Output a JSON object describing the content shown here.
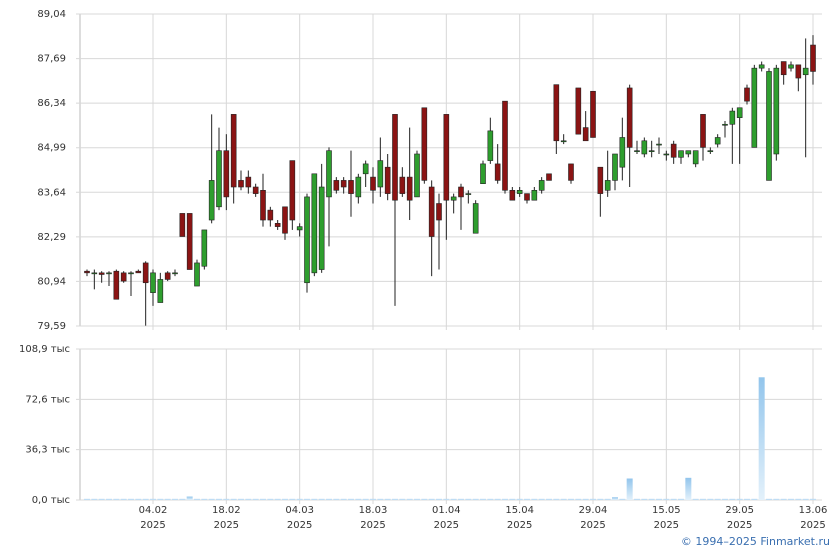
{
  "chart_data": {
    "type": "candlestick",
    "categories": [
      null,
      null,
      null,
      null,
      null,
      null,
      null,
      null,
      null,
      "04.02\n2025",
      null,
      null,
      null,
      null,
      null,
      null,
      null,
      null,
      null,
      "18.02\n2025",
      null,
      null,
      null,
      null,
      null,
      null,
      null,
      null,
      null,
      "04.03\n2025",
      null,
      null,
      null,
      null,
      null,
      null,
      null,
      null,
      null,
      "18.03\n2025",
      null,
      null,
      null,
      null,
      null,
      null,
      null,
      null,
      null,
      "01.04\n2025",
      null,
      null,
      null,
      null,
      null,
      null,
      null,
      null,
      null,
      "15.04\n2025",
      null,
      null,
      null,
      null,
      null,
      null,
      null,
      null,
      null,
      "29.04\n2025",
      null,
      null,
      null,
      null,
      null,
      null,
      null,
      null,
      null,
      "15.05\n2025",
      null,
      null,
      null,
      null,
      null,
      null,
      null,
      null,
      null,
      "29.05\n2025",
      null,
      null,
      null,
      null,
      null,
      null,
      null,
      null,
      null,
      "13.06\n2025"
    ],
    "open": [
      81.25,
      81.2,
      81.2,
      81.2,
      81.25,
      81.2,
      81.2,
      81.25,
      81.5,
      80.6,
      80.3,
      81.2,
      81.2,
      83.0,
      83.0,
      80.8,
      81.4,
      82.8,
      83.2,
      84.9,
      86.0,
      84.0,
      84.1,
      83.8,
      83.7,
      83.1,
      82.7,
      83.2,
      84.6,
      82.5,
      80.9,
      81.2,
      81.3,
      83.5,
      84.0,
      84.0,
      84.0,
      83.5,
      84.2,
      84.1,
      83.8,
      84.4,
      86.0,
      84.1,
      84.1,
      83.5,
      86.2,
      83.8,
      83.3,
      86.0,
      83.4,
      83.8,
      83.6,
      82.4,
      83.9,
      84.6,
      84.5,
      86.4,
      83.7,
      83.6,
      83.6,
      83.4,
      83.7,
      84.2,
      86.9,
      85.2,
      84.5,
      86.8,
      85.6,
      86.7,
      84.4,
      83.7,
      84.0,
      84.4,
      86.8,
      84.9,
      84.8,
      84.9,
      85.1,
      84.8,
      85.1,
      84.7,
      84.8,
      84.5,
      86.0,
      84.9,
      85.1,
      85.7,
      85.7,
      85.9,
      86.8,
      85.0,
      87.4,
      84.0,
      84.8,
      87.6,
      87.4,
      87.5,
      87.2,
      88.1
    ],
    "high": [
      81.3,
      81.3,
      81.25,
      81.25,
      81.3,
      81.25,
      81.25,
      81.3,
      81.55,
      81.3,
      81.2,
      81.25,
      81.3,
      83.0,
      83.0,
      81.6,
      82.5,
      86.0,
      85.6,
      85.4,
      86.0,
      84.3,
      84.3,
      83.9,
      84.2,
      83.2,
      82.8,
      83.2,
      84.6,
      82.7,
      83.6,
      84.2,
      84.5,
      85.0,
      84.1,
      84.1,
      84.9,
      84.2,
      84.6,
      84.4,
      85.3,
      84.8,
      86.0,
      84.4,
      85.6,
      84.9,
      86.2,
      84.0,
      83.6,
      86.0,
      83.6,
      83.9,
      83.7,
      83.4,
      84.6,
      85.9,
      85.1,
      86.4,
      83.8,
      83.8,
      83.6,
      83.8,
      84.1,
      84.2,
      86.9,
      85.4,
      84.5,
      86.8,
      86.1,
      86.7,
      84.4,
      84.9,
      84.8,
      85.9,
      86.9,
      85.2,
      85.3,
      85.2,
      85.3,
      84.9,
      85.2,
      84.9,
      84.9,
      84.9,
      86.0,
      85.0,
      85.4,
      85.8,
      86.2,
      86.2,
      86.9,
      87.5,
      87.6,
      87.4,
      87.5,
      87.6,
      87.6,
      87.5,
      88.3,
      88.4
    ],
    "low": [
      81.1,
      80.7,
      80.9,
      80.8,
      80.4,
      80.9,
      80.5,
      81.2,
      79.6,
      80.2,
      80.3,
      80.95,
      81.1,
      82.3,
      81.3,
      80.8,
      81.3,
      82.7,
      83.1,
      83.1,
      83.3,
      83.7,
      83.6,
      83.5,
      82.6,
      82.6,
      82.5,
      82.2,
      82.5,
      82.3,
      80.6,
      81.1,
      81.2,
      82.0,
      83.6,
      83.6,
      82.9,
      83.3,
      83.8,
      83.3,
      83.5,
      83.4,
      80.2,
      83.5,
      82.8,
      83.5,
      83.9,
      81.1,
      81.3,
      82.2,
      83.0,
      82.5,
      83.3,
      82.4,
      83.9,
      84.5,
      83.9,
      83.6,
      83.4,
      83.5,
      83.3,
      83.4,
      83.6,
      84.0,
      84.8,
      85.1,
      83.9,
      85.4,
      85.2,
      85.3,
      82.9,
      83.5,
      83.7,
      84.0,
      83.8,
      84.8,
      84.7,
      84.7,
      84.8,
      84.6,
      84.5,
      84.5,
      84.7,
      84.4,
      84.6,
      84.8,
      85.0,
      85.3,
      84.5,
      84.5,
      86.3,
      85.0,
      87.3,
      84.0,
      84.6,
      86.9,
      87.3,
      86.7,
      84.7,
      86.9
    ],
    "close": [
      81.2,
      81.2,
      81.15,
      81.2,
      80.4,
      80.95,
      81.2,
      81.2,
      80.9,
      81.2,
      81.0,
      81.0,
      81.2,
      82.3,
      81.3,
      81.5,
      82.5,
      84.0,
      84.9,
      83.5,
      83.8,
      83.8,
      83.8,
      83.6,
      82.8,
      82.8,
      82.6,
      82.4,
      82.8,
      82.6,
      83.5,
      84.2,
      83.8,
      84.9,
      83.7,
      83.8,
      83.6,
      84.1,
      84.5,
      83.7,
      84.6,
      83.6,
      83.4,
      83.6,
      83.4,
      84.8,
      84.0,
      82.3,
      82.8,
      83.4,
      83.5,
      83.5,
      83.6,
      83.3,
      84.5,
      85.5,
      84.0,
      83.7,
      83.4,
      83.7,
      83.4,
      83.7,
      84.0,
      84.0,
      85.2,
      85.2,
      84.0,
      85.4,
      85.2,
      85.3,
      83.6,
      84.0,
      84.8,
      85.3,
      85.0,
      84.9,
      85.2,
      84.9,
      85.1,
      84.8,
      84.7,
      84.9,
      84.9,
      84.9,
      85.0,
      84.9,
      85.3,
      85.7,
      86.1,
      86.2,
      86.4,
      87.4,
      87.5,
      87.3,
      87.4,
      87.2,
      87.5,
      87.1,
      87.4,
      87.3
    ],
    "volume": [
      0.8,
      0.8,
      0.8,
      0.8,
      0.8,
      0.8,
      0.8,
      0.8,
      0.8,
      0.8,
      0.8,
      0.8,
      0.8,
      0.8,
      2.5,
      0.8,
      0.8,
      0.8,
      0.8,
      0.8,
      0.8,
      0.8,
      0.8,
      0.8,
      0.8,
      0.8,
      0.8,
      0.8,
      0.8,
      0.8,
      0.8,
      0.8,
      0.8,
      0.8,
      0.8,
      0.8,
      0.8,
      0.8,
      0.8,
      0.8,
      0.8,
      0.8,
      0.8,
      0.8,
      0.8,
      0.8,
      0.8,
      0.8,
      0.8,
      0.8,
      0.8,
      0.8,
      0.8,
      0.8,
      0.8,
      0.8,
      0.8,
      0.8,
      0.8,
      0.8,
      0.8,
      0.8,
      0.8,
      0.8,
      0.8,
      0.8,
      0.8,
      0.8,
      0.8,
      0.8,
      0.8,
      0.8,
      2.0,
      0.8,
      15.5,
      0.8,
      0.8,
      0.8,
      0.8,
      0.8,
      0.8,
      0.8,
      16.0,
      0.8,
      0.8,
      0.8,
      0.8,
      0.8,
      0.8,
      0.8,
      0.8,
      0.8,
      88.5,
      0.8,
      0.8,
      0.8,
      0.8,
      0.8,
      0.8,
      0.8
    ],
    "up_color": "#2e9e2e",
    "down_color": "#8b1414",
    "volume_color": "#92c5ec",
    "ylim": [
      79.59,
      89.04
    ],
    "yticks": [
      {
        "value": 79.59,
        "label": "79,59"
      },
      {
        "value": 80.94,
        "label": "80,94"
      },
      {
        "value": 82.29,
        "label": "82,29"
      },
      {
        "value": 83.64,
        "label": "83,64"
      },
      {
        "value": 84.99,
        "label": "84,99"
      },
      {
        "value": 86.34,
        "label": "86,34"
      },
      {
        "value": 87.69,
        "label": "87,69"
      },
      {
        "value": 89.04,
        "label": "89,04"
      }
    ],
    "y2lim": [
      0,
      108.9
    ],
    "y2ticks": [
      {
        "value": 0,
        "label": "0,0 тыс"
      },
      {
        "value": 36.3,
        "label": "36,3 тыс"
      },
      {
        "value": 72.6,
        "label": "72,6 тыс"
      },
      {
        "value": 108.9,
        "label": "108,9 тыс"
      }
    ],
    "grid": true
  },
  "footer": "© 1994–2025 Finmarket.ru"
}
